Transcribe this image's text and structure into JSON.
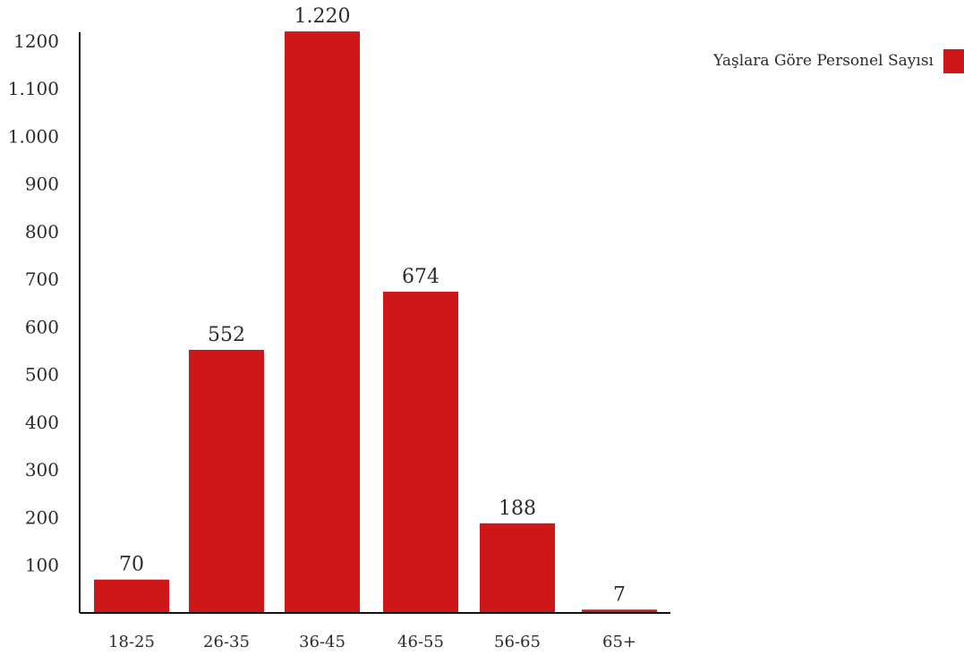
{
  "chart_data": {
    "type": "bar",
    "categories": [
      "18-25",
      "26-35",
      "36-45",
      "46-55",
      "56-65",
      "65+"
    ],
    "series": [
      {
        "name": "Yaşlara Göre Personel Sayısı",
        "values": [
          70,
          552,
          1220,
          674,
          188,
          7
        ],
        "data_labels": [
          "70",
          "552",
          "1.220",
          "674",
          "188",
          "7"
        ],
        "color": "#CD1719"
      }
    ],
    "yticks": [
      100,
      200,
      300,
      400,
      500,
      600,
      700,
      800,
      900,
      1000,
      1100,
      1200
    ],
    "ytick_labels": [
      "100",
      "200",
      "300",
      "400",
      "500",
      "600",
      "700",
      "800",
      "900",
      "1.000",
      "1.100",
      "1200"
    ],
    "ylim": [
      0,
      1200
    ],
    "title": "",
    "xlabel": "",
    "ylabel": "",
    "grid": false,
    "legend_position": "top-right"
  }
}
